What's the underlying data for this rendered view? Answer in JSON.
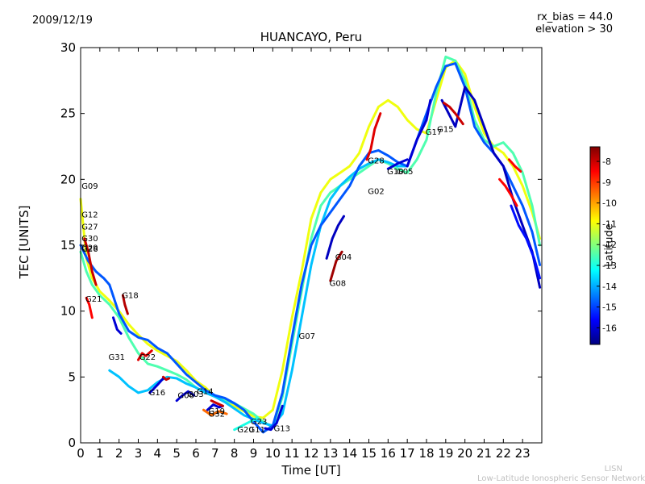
{
  "header": {
    "date": "2009/12/19",
    "rx_bias": "rx_bias = 44.0",
    "elevation": "elevation > 30"
  },
  "footer": {
    "line1": "LISN",
    "line2": "Low-Latitude Ionospheric Sensor Network"
  },
  "chart_data": {
    "type": "line",
    "title": "HUANCAYO, Peru",
    "xlabel": "Time [UT]",
    "ylabel": "TEC [UNITS]",
    "xlim": [
      0,
      24
    ],
    "ylim": [
      0,
      30
    ],
    "xticks": [
      0,
      1,
      2,
      3,
      4,
      5,
      6,
      7,
      8,
      9,
      10,
      11,
      12,
      13,
      14,
      15,
      16,
      17,
      18,
      19,
      20,
      21,
      22,
      23
    ],
    "yticks": [
      0,
      5,
      10,
      15,
      20,
      25,
      30
    ],
    "grid": false,
    "colorbar": {
      "label": "Latitude",
      "range": [
        -16.8,
        -7.3
      ],
      "ticks": [
        -8,
        -9,
        -10,
        -11,
        -12,
        -13,
        -14,
        -15,
        -16
      ],
      "colormap": [
        "#00007f",
        "#0000ff",
        "#007fff",
        "#00ffff",
        "#7fff7f",
        "#ffff00",
        "#ff7f00",
        "#ff0000",
        "#7f0000"
      ]
    },
    "satellite_labels": [
      {
        "name": "G09",
        "x": 0.05,
        "y": 19.3
      },
      {
        "name": "G12",
        "x": 0.05,
        "y": 17.1
      },
      {
        "name": "G27",
        "x": 0.05,
        "y": 16.2
      },
      {
        "name": "G30",
        "x": 0.05,
        "y": 15.3
      },
      {
        "name": "G29",
        "x": 0.05,
        "y": 14.6
      },
      {
        "name": "G26",
        "x": 0.05,
        "y": 14.5
      },
      {
        "name": "G21",
        "x": 0.25,
        "y": 10.7
      },
      {
        "name": "G18",
        "x": 2.15,
        "y": 11.0
      },
      {
        "name": "G31",
        "x": 1.45,
        "y": 6.3
      },
      {
        "name": "G22",
        "x": 3.05,
        "y": 6.3
      },
      {
        "name": "G16",
        "x": 3.55,
        "y": 3.6
      },
      {
        "name": "G06",
        "x": 5.05,
        "y": 3.4
      },
      {
        "name": "G03",
        "x": 5.55,
        "y": 3.5
      },
      {
        "name": "G14",
        "x": 6.05,
        "y": 3.7
      },
      {
        "name": "G19",
        "x": 6.65,
        "y": 2.2
      },
      {
        "name": "G32",
        "x": 6.65,
        "y": 2.0
      },
      {
        "name": "G23",
        "x": 8.85,
        "y": 1.4
      },
      {
        "name": "G20",
        "x": 8.15,
        "y": 0.8
      },
      {
        "name": "G11",
        "x": 8.75,
        "y": 0.8
      },
      {
        "name": "G13",
        "x": 10.05,
        "y": 0.9
      },
      {
        "name": "G07",
        "x": 11.35,
        "y": 7.9
      },
      {
        "name": "G08",
        "x": 12.95,
        "y": 11.9
      },
      {
        "name": "G04",
        "x": 13.25,
        "y": 13.9
      },
      {
        "name": "G02",
        "x": 14.95,
        "y": 18.9
      },
      {
        "name": "G28",
        "x": 14.95,
        "y": 21.2
      },
      {
        "name": "G10",
        "x": 15.95,
        "y": 20.4
      },
      {
        "name": "G05",
        "x": 16.45,
        "y": 20.4
      },
      {
        "name": "G17",
        "x": 17.95,
        "y": 23.4
      },
      {
        "name": "G15",
        "x": 18.55,
        "y": 23.6
      }
    ],
    "series": [
      {
        "lat": -11.0,
        "x": [
          0,
          0.3,
          0.6,
          1.0,
          1.5,
          2.0,
          2.5,
          3.0,
          3.5,
          4.0,
          4.5,
          5.0,
          5.5,
          6.0,
          6.5,
          7.0,
          7.5,
          8.0,
          8.5,
          9.0,
          9.5,
          10.0,
          10.5,
          11.0,
          11.5,
          12.0,
          12.5,
          13.0,
          13.5,
          14.0,
          14.5,
          15.0,
          15.5,
          16.0,
          16.5,
          17.0,
          17.5,
          18.0,
          18.5,
          19.0,
          19.5,
          20.0,
          20.5,
          21.0,
          21.5,
          22.0,
          22.5,
          23.0,
          23.5,
          23.9
        ],
        "y": [
          18.5,
          14.0,
          12.5,
          11.5,
          10.8,
          10.0,
          9.0,
          8.2,
          7.5,
          7.0,
          6.6,
          6.2,
          5.5,
          4.7,
          4.2,
          3.5,
          3.2,
          2.8,
          2.4,
          2.0,
          1.9,
          2.5,
          5.5,
          9.5,
          13.0,
          17.0,
          19.0,
          20.0,
          20.5,
          21.0,
          22.0,
          24.0,
          25.5,
          26.0,
          25.5,
          24.5,
          23.8,
          23.5,
          26.0,
          28.5,
          29.0,
          28.0,
          25.5,
          23.5,
          22.5,
          22.0,
          21.0,
          19.5,
          17.5,
          15.5
        ]
      },
      {
        "lat": -12.5,
        "x": [
          0,
          0.3,
          0.6,
          1.0,
          1.5,
          2.0,
          2.5,
          3.0,
          3.5,
          4.0,
          4.5,
          5.0,
          5.5,
          6.0,
          6.5,
          7.0,
          7.5,
          8.0,
          8.5,
          9.0,
          9.5,
          10.0,
          10.5,
          11.0,
          11.5,
          12.0,
          12.5,
          13.0,
          13.5,
          14.0,
          14.5,
          15.0,
          15.5,
          16.0,
          16.5,
          17.0,
          17.5,
          18.0,
          18.5,
          19.0,
          19.5,
          20.0,
          20.5,
          21.0,
          21.5,
          22.0,
          22.5,
          23.0,
          23.5,
          23.9
        ],
        "y": [
          14.5,
          13.0,
          12.0,
          11.2,
          10.5,
          9.5,
          8.0,
          6.8,
          6.0,
          5.8,
          5.5,
          5.2,
          4.8,
          4.2,
          3.8,
          3.5,
          3.2,
          3.0,
          2.6,
          2.2,
          1.6,
          1.2,
          3.5,
          7.5,
          11.5,
          15.5,
          18.0,
          19.0,
          19.5,
          20.0,
          20.5,
          21.0,
          21.5,
          21.2,
          20.8,
          20.5,
          21.5,
          23.0,
          26.5,
          29.3,
          29.0,
          27.5,
          24.5,
          23.0,
          22.5,
          22.8,
          22.0,
          20.5,
          18.0,
          15.0
        ]
      },
      {
        "lat": -13.8,
        "x": [
          1.5,
          2.0,
          2.5,
          3.0,
          3.5,
          4.0,
          4.5,
          5.0,
          5.5,
          6.0,
          6.5,
          7.0,
          7.5,
          8.0,
          8.5,
          9.0,
          9.5,
          10.0,
          10.5,
          11.0,
          11.5,
          12.0,
          12.5,
          13.0,
          13.5,
          14.0,
          14.5,
          15.0,
          15.5,
          16.0,
          16.5,
          17.0
        ],
        "y": [
          5.5,
          5.0,
          4.3,
          3.8,
          4.0,
          4.6,
          5.0,
          4.9,
          4.5,
          4.2,
          3.8,
          3.5,
          3.1,
          2.6,
          2.1,
          1.8,
          1.5,
          1.3,
          2.2,
          5.5,
          9.5,
          13.5,
          16.5,
          18.5,
          19.5,
          20.2,
          20.8,
          21.2,
          21.5,
          21.3,
          21.0,
          21.0
        ]
      },
      {
        "lat": -14.8,
        "x": [
          0,
          0.4,
          0.8,
          1.2,
          1.5,
          2.0,
          2.5,
          3.0,
          3.5,
          4.0,
          4.5,
          5.0,
          5.5,
          6.0,
          6.5,
          7.0,
          7.5,
          8.0,
          8.5,
          9.0,
          9.5,
          10.0,
          10.5,
          11.0,
          11.5,
          12.0,
          12.5,
          13.0,
          13.5,
          14.0,
          14.5,
          15.0,
          15.5,
          16.0,
          16.5,
          17.0,
          17.5,
          18.0,
          18.5,
          19.0,
          19.5,
          20.0,
          20.5,
          21.0,
          21.5,
          22.0,
          22.5,
          23.0,
          23.5,
          23.9
        ],
        "y": [
          15.0,
          13.8,
          13.0,
          12.5,
          12.0,
          9.8,
          8.5,
          8.0,
          7.8,
          7.2,
          6.8,
          6.0,
          5.2,
          4.6,
          4.0,
          3.6,
          3.4,
          3.0,
          2.5,
          1.6,
          0.8,
          1.3,
          3.8,
          8.0,
          12.0,
          15.0,
          16.5,
          17.5,
          18.5,
          19.5,
          21.0,
          22.0,
          22.2,
          21.8,
          21.3,
          21.0,
          23.0,
          25.0,
          27.0,
          28.6,
          28.8,
          27.0,
          24.0,
          22.8,
          22.0,
          21.0,
          19.5,
          18.0,
          16.0,
          13.5
        ]
      },
      {
        "lat": -16.2,
        "x": [
          18.8,
          19.5,
          20.0,
          20.5,
          21.0,
          21.5,
          22.0,
          22.5,
          23.0,
          23.5,
          23.9
        ],
        "y": [
          26.0,
          24.0,
          27.0,
          26.0,
          24.0,
          22.0,
          21.0,
          18.5,
          16.5,
          14.5,
          11.8
        ]
      },
      {
        "lat": -16.0,
        "x": [
          1.7,
          1.9,
          2.1
        ],
        "y": [
          9.5,
          8.6,
          8.3
        ]
      },
      {
        "lat": -16.0,
        "x": [
          5.0,
          5.3,
          5.6,
          5.9
        ],
        "y": [
          3.2,
          3.6,
          3.9,
          3.6
        ]
      },
      {
        "lat": -16.0,
        "x": [
          6.6,
          6.9,
          7.2,
          7.4
        ],
        "y": [
          2.5,
          2.9,
          2.7,
          2.8
        ]
      },
      {
        "lat": -16.0,
        "x": [
          9.6,
          9.9,
          10.2,
          10.5
        ],
        "y": [
          1.1,
          1.0,
          1.5,
          2.8
        ]
      },
      {
        "lat": -16.2,
        "x": [
          12.8,
          13.1,
          13.4,
          13.7
        ],
        "y": [
          14.0,
          15.5,
          16.5,
          17.2
        ]
      },
      {
        "lat": -16.0,
        "x": [
          16.0,
          16.5,
          17.0
        ],
        "y": [
          20.8,
          21.2,
          21.5
        ]
      },
      {
        "lat": -16.0,
        "x": [
          17.0,
          17.5,
          18.0,
          18.2
        ],
        "y": [
          21.0,
          23.0,
          24.5,
          26.0
        ]
      },
      {
        "lat": -16.0,
        "x": [
          3.6,
          3.8,
          4.0,
          4.3
        ],
        "y": [
          3.8,
          4.1,
          4.4,
          4.9
        ]
      },
      {
        "lat": -8.0,
        "x": [
          0.2,
          0.4,
          0.6,
          0.8
        ],
        "y": [
          15.5,
          14.5,
          13.0,
          12.0
        ]
      },
      {
        "lat": -8.5,
        "x": [
          0.3,
          0.45,
          0.6
        ],
        "y": [
          11.0,
          10.5,
          9.5
        ]
      },
      {
        "lat": -7.8,
        "x": [
          2.2,
          2.3,
          2.45
        ],
        "y": [
          11.2,
          10.5,
          9.8
        ]
      },
      {
        "lat": -8.2,
        "x": [
          3.0,
          3.2,
          3.4,
          3.7
        ],
        "y": [
          6.3,
          6.8,
          6.6,
          7.0
        ]
      },
      {
        "lat": -8.0,
        "x": [
          6.8,
          7.1,
          7.4
        ],
        "y": [
          3.2,
          3.0,
          2.8
        ]
      },
      {
        "lat": -7.6,
        "x": [
          13.0,
          13.3,
          13.6
        ],
        "y": [
          12.3,
          13.8,
          14.5
        ]
      },
      {
        "lat": -8.2,
        "x": [
          14.9,
          15.1,
          15.3,
          15.6
        ],
        "y": [
          21.5,
          22.3,
          23.8,
          25.0
        ]
      },
      {
        "lat": -8.0,
        "x": [
          18.9,
          19.2,
          19.5,
          19.9
        ],
        "y": [
          25.8,
          25.5,
          25.0,
          24.2
        ]
      },
      {
        "lat": -8.5,
        "x": [
          21.8,
          22.1,
          22.4,
          22.7
        ],
        "y": [
          20.0,
          19.5,
          18.8,
          18.0
        ]
      },
      {
        "lat": -8.5,
        "x": [
          22.3,
          22.6,
          22.9
        ],
        "y": [
          21.5,
          21.0,
          20.6
        ]
      },
      {
        "lat": -8.0,
        "x": [
          4.3,
          4.45,
          4.6
        ],
        "y": [
          5.0,
          4.8,
          4.9
        ]
      },
      {
        "lat": -15.5,
        "x": [
          22.4,
          22.8,
          23.2,
          23.6,
          23.9
        ],
        "y": [
          18.0,
          16.5,
          15.5,
          14.0,
          12.5
        ]
      },
      {
        "lat": -9.5,
        "x": [
          6.4,
          6.8,
          7.2,
          7.6
        ],
        "y": [
          2.5,
          2.1,
          2.4,
          2.2
        ]
      },
      {
        "lat": -13.0,
        "x": [
          8.0,
          8.4,
          8.8,
          9.2
        ],
        "y": [
          1.0,
          1.3,
          1.6,
          1.9
        ]
      }
    ]
  }
}
